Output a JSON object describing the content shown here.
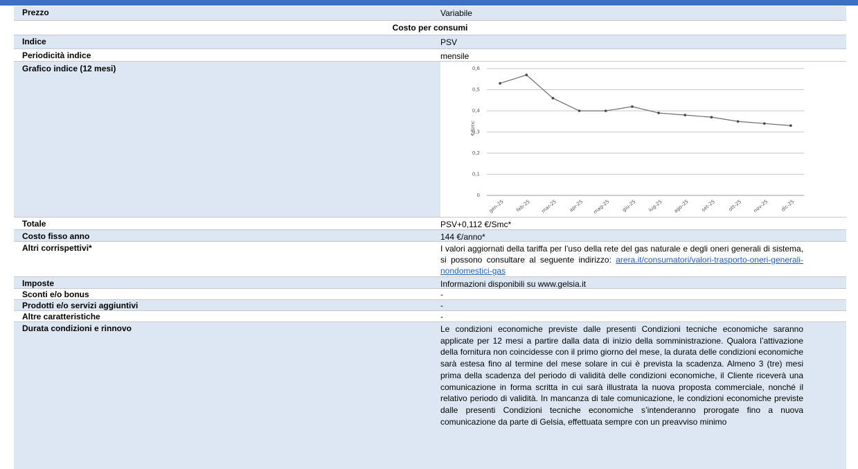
{
  "table": {
    "rows": [
      {
        "label": "Prezzo",
        "value": "Variabile"
      },
      {
        "label": "Costo per consumi"
      },
      {
        "label": "Indice",
        "value": "PSV"
      },
      {
        "label": "Periodicità indice",
        "value": "mensile"
      },
      {
        "label": "Grafico indice (12 mesi)"
      },
      {
        "label": "Totale",
        "value": "PSV+0,112 €/Smc*"
      },
      {
        "label": "Costo fisso anno",
        "value": "144 €/anno*"
      },
      {
        "label": "Altri corrispettivi*",
        "value": "I valori aggiornati della tariffa per l’uso della rete del gas naturale e degli oneri generali di sistema, si possono consultare al seguente indirizzo:",
        "link": "arera.it/consumatori/valori-trasporto-oneri-generali-nondomestici-gas"
      },
      {
        "label": "Imposte",
        "value": "Informazioni disponibili su www.gelsia.it"
      },
      {
        "label": "Sconti e/o bonus",
        "value": "-"
      },
      {
        "label": "Prodotti e/o servizi aggiuntivi",
        "value": "-"
      },
      {
        "label": "Altre caratteristiche",
        "value": "-"
      },
      {
        "label": "Durata condizioni e rinnovo",
        "value": "Le condizioni economiche previste dalle presenti Condizioni tecniche economiche saranno applicate per 12 mesi a partire dalla data di inizio della somministrazione. Qualora l’attivazione della fornitura non coincidesse con il primo giorno del mese, la durata delle condizioni economiche sarà estesa fino al termine del mese solare in cui è prevista la scadenza. Almeno 3 (tre) mesi prima della scadenza del periodo di validità delle condizioni economiche, il Cliente riceverà una comunicazione in forma scritta in cui sarà illustrata la nuova proposta commerciale, nonché il relativo periodo di validità. In mancanza di tale comunicazione, le condizioni economiche previste dalle presenti Condizioni tecniche economiche s’intenderanno prorogate fino a nuova comunicazione da parte di Gelsia, effettuata sempre con un preavviso minimo"
      }
    ]
  },
  "chart_data": {
    "type": "line",
    "y_label": "€/Smc",
    "categories": [
      "gen-25",
      "feb-25",
      "mar-25",
      "apr-25",
      "mag-25",
      "giu-25",
      "lug-25",
      "ago-25",
      "set-25",
      "ott-25",
      "nov-25",
      "dic-25"
    ],
    "values": [
      0.53,
      0.57,
      0.46,
      0.4,
      0.4,
      0.42,
      0.39,
      0.38,
      0.37,
      0.35,
      0.34,
      0.33
    ],
    "color": "#6b6b6b",
    "ylim": [
      0,
      0.6
    ],
    "yticks": [
      0,
      {
        "value": 0.1,
        "label": "0,1"
      },
      {
        "value": 0.2,
        "label": "0,2"
      },
      {
        "value": 0.3,
        "label": "0,3"
      },
      {
        "value": 0.4,
        "label": "0,4"
      },
      {
        "value": 0.5,
        "label": "0,5"
      },
      {
        "value": 0.6,
        "label": "0,6"
      }
    ],
    "grid": true
  }
}
